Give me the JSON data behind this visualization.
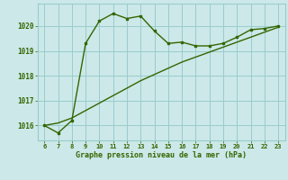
{
  "x": [
    6,
    7,
    8,
    9,
    10,
    11,
    12,
    13,
    14,
    15,
    16,
    17,
    18,
    19,
    20,
    21,
    22,
    23
  ],
  "y_curve": [
    1016.0,
    1015.7,
    1016.2,
    1019.3,
    1020.2,
    1020.5,
    1020.3,
    1020.4,
    1019.8,
    1019.3,
    1019.35,
    1019.2,
    1019.2,
    1019.3,
    1019.55,
    1019.85,
    1019.9,
    1020.0
  ],
  "y_line": [
    1016.0,
    1016.1,
    1016.3,
    1016.6,
    1016.9,
    1017.2,
    1017.5,
    1017.8,
    1018.05,
    1018.3,
    1018.55,
    1018.75,
    1018.95,
    1019.15,
    1019.35,
    1019.55,
    1019.75,
    1019.95
  ],
  "line_color": "#336600",
  "bg_color": "#cce8e8",
  "grid_color": "#99cccc",
  "text_color": "#336600",
  "xlabel": "Graphe pression niveau de la mer (hPa)",
  "xlim": [
    5.5,
    23.5
  ],
  "ylim": [
    1015.4,
    1020.9
  ],
  "yticks": [
    1016,
    1017,
    1018,
    1019,
    1020
  ],
  "xticks": [
    6,
    7,
    8,
    9,
    10,
    11,
    12,
    13,
    14,
    15,
    16,
    17,
    18,
    19,
    20,
    21,
    22,
    23
  ]
}
